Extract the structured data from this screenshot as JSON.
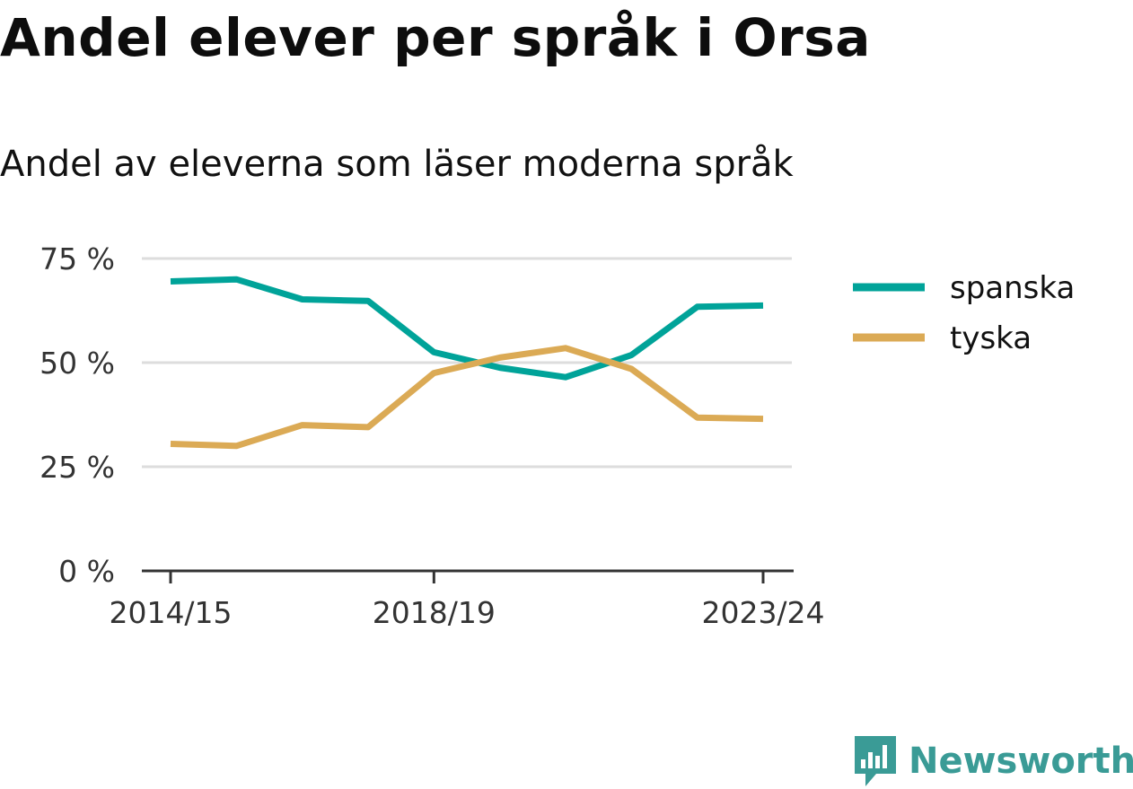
{
  "title": "Andel elever per språk i Orsa",
  "subtitle": "Andel av eleverna som läser moderna språk",
  "brand": {
    "name": "Newsworthy",
    "icon": "newsworthy-logo-icon",
    "color": "#3a9b96"
  },
  "chart_data": {
    "type": "line",
    "title": "Andel elever per språk i Orsa",
    "subtitle": "Andel av eleverna som läser moderna språk",
    "x": [
      "2014/15",
      "2015/16",
      "2016/17",
      "2017/18",
      "2018/19",
      "2019/20",
      "2020/21",
      "2021/22",
      "2022/23",
      "2023/24"
    ],
    "x_tick_labels": [
      "2014/15",
      "2018/19",
      "2023/24"
    ],
    "series": [
      {
        "name": "spanska",
        "color": "#00a399",
        "values": [
          69.5,
          70,
          65.2,
          64.8,
          52.5,
          48.8,
          46.5,
          51.8,
          63.4,
          63.7
        ]
      },
      {
        "name": "tyska",
        "color": "#dbaa55",
        "values": [
          30.5,
          30,
          35,
          34.5,
          47.5,
          51.2,
          53.5,
          48.5,
          36.8,
          36.5
        ]
      }
    ],
    "y_ticks": [
      0,
      25,
      50,
      75
    ],
    "y_tick_labels": [
      "0 %",
      "25 %",
      "50 %",
      "75 %"
    ],
    "ylim": [
      0,
      75
    ],
    "grid": true,
    "legend_position": "right"
  }
}
